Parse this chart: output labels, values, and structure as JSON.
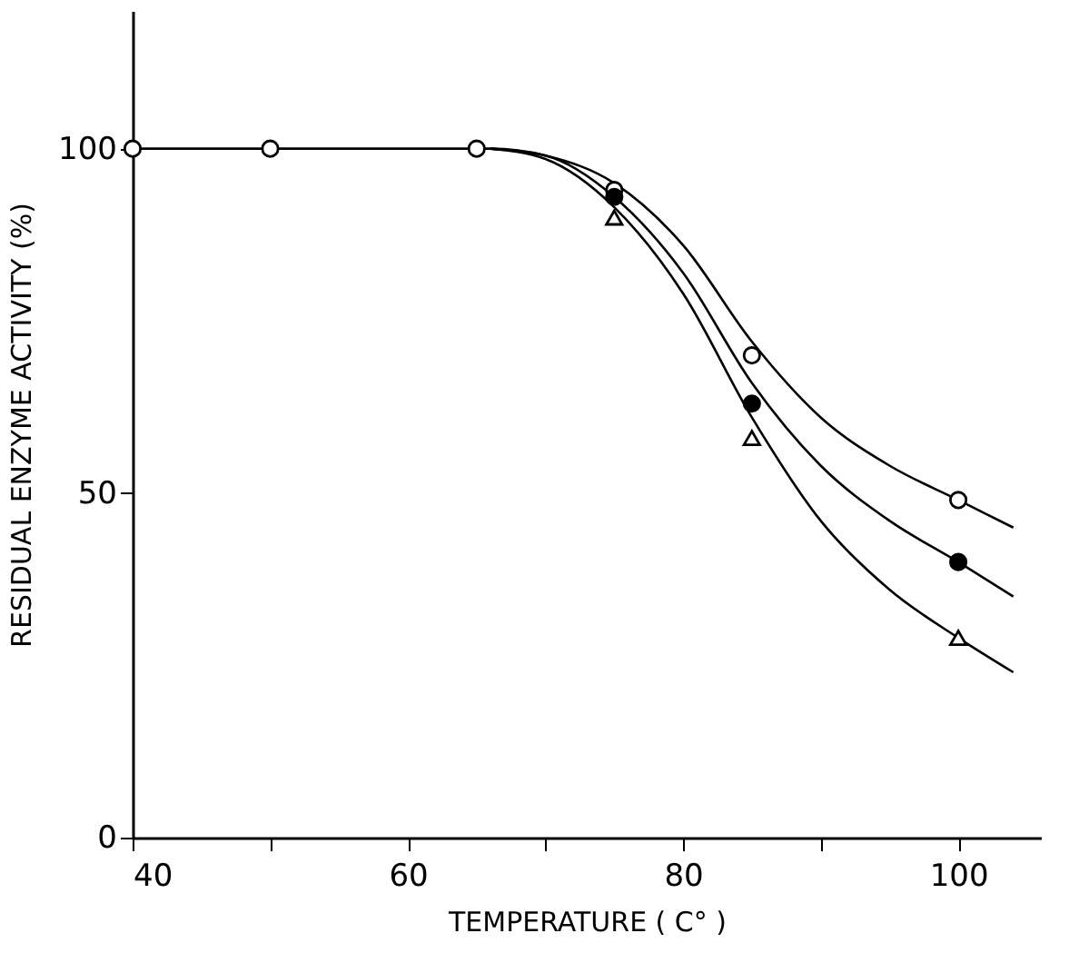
{
  "chart_data": {
    "type": "scatter",
    "xlabel": "TEMPERATURE   ( C° )",
    "ylabel": "RESIDUAL   ENZYME   ACTIVITY   (%)",
    "xlim": [
      40,
      106
    ],
    "ylim": [
      0,
      120
    ],
    "xticks": [
      40,
      {
        "value": 50,
        "label": null
      },
      60,
      {
        "value": 70,
        "label": null
      },
      80,
      {
        "value": 90,
        "label": null
      },
      100
    ],
    "yticks": [
      0,
      50,
      100
    ],
    "grid": false,
    "series": [
      {
        "marker": "circle",
        "color": "#ffffff",
        "x": [
          40,
          50,
          65,
          75,
          85,
          100
        ],
        "values": [
          100,
          100,
          100,
          94,
          70,
          49
        ]
      },
      {
        "marker": "circle",
        "color": "#000000",
        "x": [
          75,
          85,
          100
        ],
        "values": [
          93,
          63,
          40
        ]
      },
      {
        "marker": "triangle",
        "color": "#ffffff",
        "x": [
          75,
          85,
          100
        ],
        "values": [
          90,
          58,
          29
        ]
      },
      {
        "type": "line",
        "line_style": "solid",
        "color": "#000000",
        "x": [
          40,
          66,
          70,
          75,
          80,
          85,
          90,
          95,
          100,
          104
        ],
        "values": [
          100,
          100,
          99,
          95,
          86,
          72,
          61,
          54,
          49,
          45
        ]
      },
      {
        "type": "line",
        "line_style": "solid",
        "color": "#000000",
        "x": [
          66,
          70,
          75,
          80,
          85,
          90,
          95,
          100,
          104
        ],
        "values": [
          100,
          99,
          93,
          82,
          66,
          54,
          46,
          40,
          35
        ]
      },
      {
        "type": "line",
        "line_style": "solid",
        "color": "#000000",
        "x": [
          66,
          70,
          75,
          80,
          85,
          90,
          95,
          100,
          104
        ],
        "values": [
          100,
          98.5,
          91.5,
          79,
          61,
          46,
          36,
          29,
          24
        ]
      }
    ]
  }
}
